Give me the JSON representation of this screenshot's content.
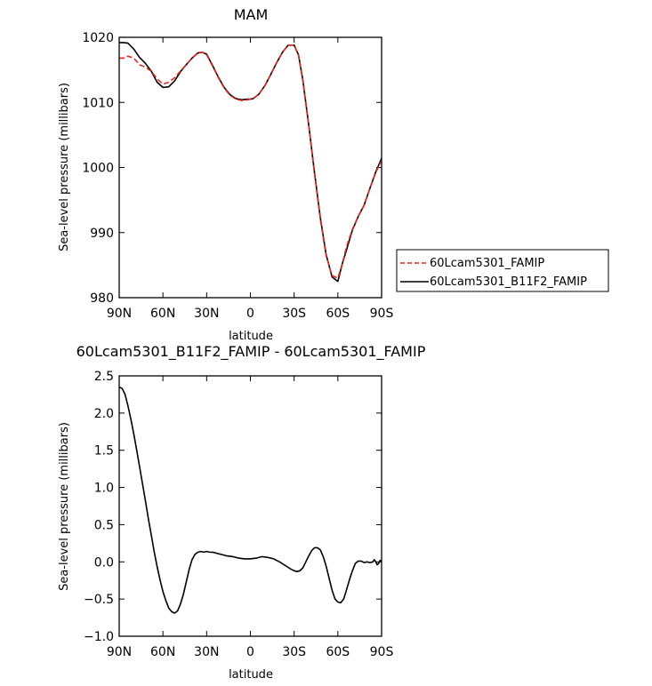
{
  "chart_data": [
    {
      "type": "line",
      "title": "MAM",
      "xlabel": "latitude",
      "ylabel": "Sea-level pressure (millibars)",
      "xlim": [
        90,
        -90
      ],
      "ylim": [
        980,
        1020
      ],
      "xticks": [
        90,
        60,
        30,
        0,
        -30,
        -60,
        -90
      ],
      "xtick_labels": [
        "90N",
        "60N",
        "30N",
        "0",
        "30S",
        "60S",
        "90S"
      ],
      "yticks": [
        980,
        990,
        1000,
        1010,
        1020
      ],
      "ytick_labels": [
        "980",
        "990",
        "1000",
        "1010",
        "1020"
      ],
      "grid": false,
      "legend_placement": "outside-right",
      "series": [
        {
          "name": "60Lcam5301_FAMIP",
          "color": "#e8241c",
          "dash": "dashed",
          "x": [
            90,
            87,
            84,
            80,
            76,
            72,
            68,
            64,
            60,
            56,
            52,
            48,
            44,
            40,
            36,
            33,
            30,
            26,
            22,
            18,
            14,
            10,
            6,
            2,
            0,
            -2,
            -6,
            -10,
            -14,
            -18,
            -22,
            -26,
            -30,
            -33,
            -36,
            -40,
            -44,
            -48,
            -52,
            -56,
            -60,
            -63,
            -66,
            -70,
            -74,
            -78,
            -82,
            -86,
            -90
          ],
          "y": [
            1016.8,
            1016.8,
            1017.1,
            1016.8,
            1015.8,
            1015.4,
            1014.8,
            1013.6,
            1012.8,
            1013.1,
            1013.8,
            1014.8,
            1015.8,
            1016.8,
            1017.6,
            1017.7,
            1017.3,
            1015.6,
            1013.8,
            1012.2,
            1011.1,
            1010.5,
            1010.3,
            1010.4,
            1010.5,
            1010.6,
            1011.3,
            1012.6,
            1014.3,
            1016.1,
            1017.7,
            1018.8,
            1018.8,
            1017.2,
            1013.3,
            1006.4,
            999.0,
            992.0,
            986.4,
            983.4,
            983.0,
            985.2,
            987.9,
            990.5,
            992.5,
            994.2,
            996.8,
            999.2,
            1001.1
          ]
        },
        {
          "name": "60Lcam5301_B11F2_FAMIP",
          "color": "#000000",
          "dash": "solid",
          "x": [
            90,
            87,
            84,
            80,
            76,
            72,
            68,
            64,
            60,
            56,
            52,
            48,
            44,
            40,
            36,
            33,
            30,
            26,
            22,
            18,
            14,
            10,
            6,
            2,
            0,
            -2,
            -6,
            -10,
            -14,
            -18,
            -22,
            -26,
            -30,
            -33,
            -36,
            -40,
            -44,
            -48,
            -52,
            -56,
            -60,
            -63,
            -66,
            -70,
            -74,
            -78,
            -82,
            -86,
            -90
          ],
          "y": [
            1019.2,
            1019.2,
            1019.1,
            1018.2,
            1016.9,
            1016.0,
            1014.8,
            1013.1,
            1012.3,
            1012.4,
            1013.3,
            1014.7,
            1015.8,
            1016.8,
            1017.6,
            1017.7,
            1017.4,
            1015.7,
            1013.9,
            1012.3,
            1011.2,
            1010.6,
            1010.4,
            1010.5,
            1010.5,
            1010.6,
            1011.3,
            1012.6,
            1014.3,
            1016.1,
            1017.7,
            1018.8,
            1018.8,
            1017.3,
            1013.4,
            1006.5,
            999.2,
            992.2,
            986.6,
            983.2,
            982.5,
            985.2,
            987.4,
            990.4,
            992.5,
            994.2,
            996.8,
            999.3,
            1001.4
          ]
        }
      ]
    },
    {
      "type": "line",
      "title": "60Lcam5301_B11F2_FAMIP - 60Lcam5301_FAMIP",
      "xlabel": "latitude",
      "ylabel": "Sea-level pressure (millibars)",
      "xlim": [
        90,
        -90
      ],
      "ylim": [
        -1.0,
        2.5
      ],
      "xticks": [
        90,
        60,
        30,
        0,
        -30,
        -60,
        -90
      ],
      "xtick_labels": [
        "90N",
        "60N",
        "30N",
        "0",
        "30S",
        "60S",
        "90S"
      ],
      "yticks": [
        -1.0,
        -0.5,
        0.0,
        0.5,
        1.0,
        1.5,
        2.0,
        2.5
      ],
      "ytick_labels": [
        "−1.0",
        "−0.5",
        "0.0",
        "0.5",
        "1.0",
        "1.5",
        "2.0",
        "2.5"
      ],
      "grid": false,
      "series": [
        {
          "color": "#000000",
          "dash": "solid",
          "x": [
            90,
            88,
            86,
            84,
            82,
            80,
            78,
            76,
            74,
            72,
            70,
            68,
            66,
            64,
            62,
            60,
            58,
            56,
            54,
            52,
            50,
            48,
            46,
            44,
            42,
            40,
            38,
            36,
            34,
            32,
            30,
            28,
            26,
            24,
            22,
            20,
            16,
            12,
            8,
            4,
            0,
            -4,
            -8,
            -12,
            -16,
            -20,
            -24,
            -28,
            -30,
            -32,
            -34,
            -36,
            -38,
            -40,
            -42,
            -44,
            -46,
            -48,
            -50,
            -52,
            -54,
            -56,
            -58,
            -60,
            -62,
            -64,
            -66,
            -68,
            -70,
            -72,
            -74,
            -76,
            -78,
            -80,
            -82,
            -84,
            -85,
            -86,
            -87,
            -88,
            -89,
            -90
          ],
          "y": [
            2.35,
            2.33,
            2.25,
            2.1,
            1.92,
            1.72,
            1.5,
            1.28,
            1.05,
            0.82,
            0.58,
            0.36,
            0.14,
            -0.06,
            -0.24,
            -0.4,
            -0.52,
            -0.62,
            -0.67,
            -0.69,
            -0.66,
            -0.57,
            -0.44,
            -0.27,
            -0.1,
            0.03,
            0.1,
            0.13,
            0.14,
            0.13,
            0.14,
            0.13,
            0.13,
            0.12,
            0.11,
            0.1,
            0.08,
            0.07,
            0.05,
            0.04,
            0.04,
            0.05,
            0.07,
            0.06,
            0.04,
            0.0,
            -0.05,
            -0.1,
            -0.12,
            -0.13,
            -0.12,
            -0.08,
            0.0,
            0.08,
            0.15,
            0.19,
            0.19,
            0.16,
            0.07,
            -0.06,
            -0.22,
            -0.38,
            -0.5,
            -0.54,
            -0.55,
            -0.5,
            -0.37,
            -0.24,
            -0.12,
            -0.02,
            0.01,
            0.01,
            -0.01,
            0.0,
            -0.01,
            0.0,
            0.03,
            0.0,
            -0.04,
            -0.02,
            0.02,
            0.0
          ]
        }
      ]
    }
  ]
}
